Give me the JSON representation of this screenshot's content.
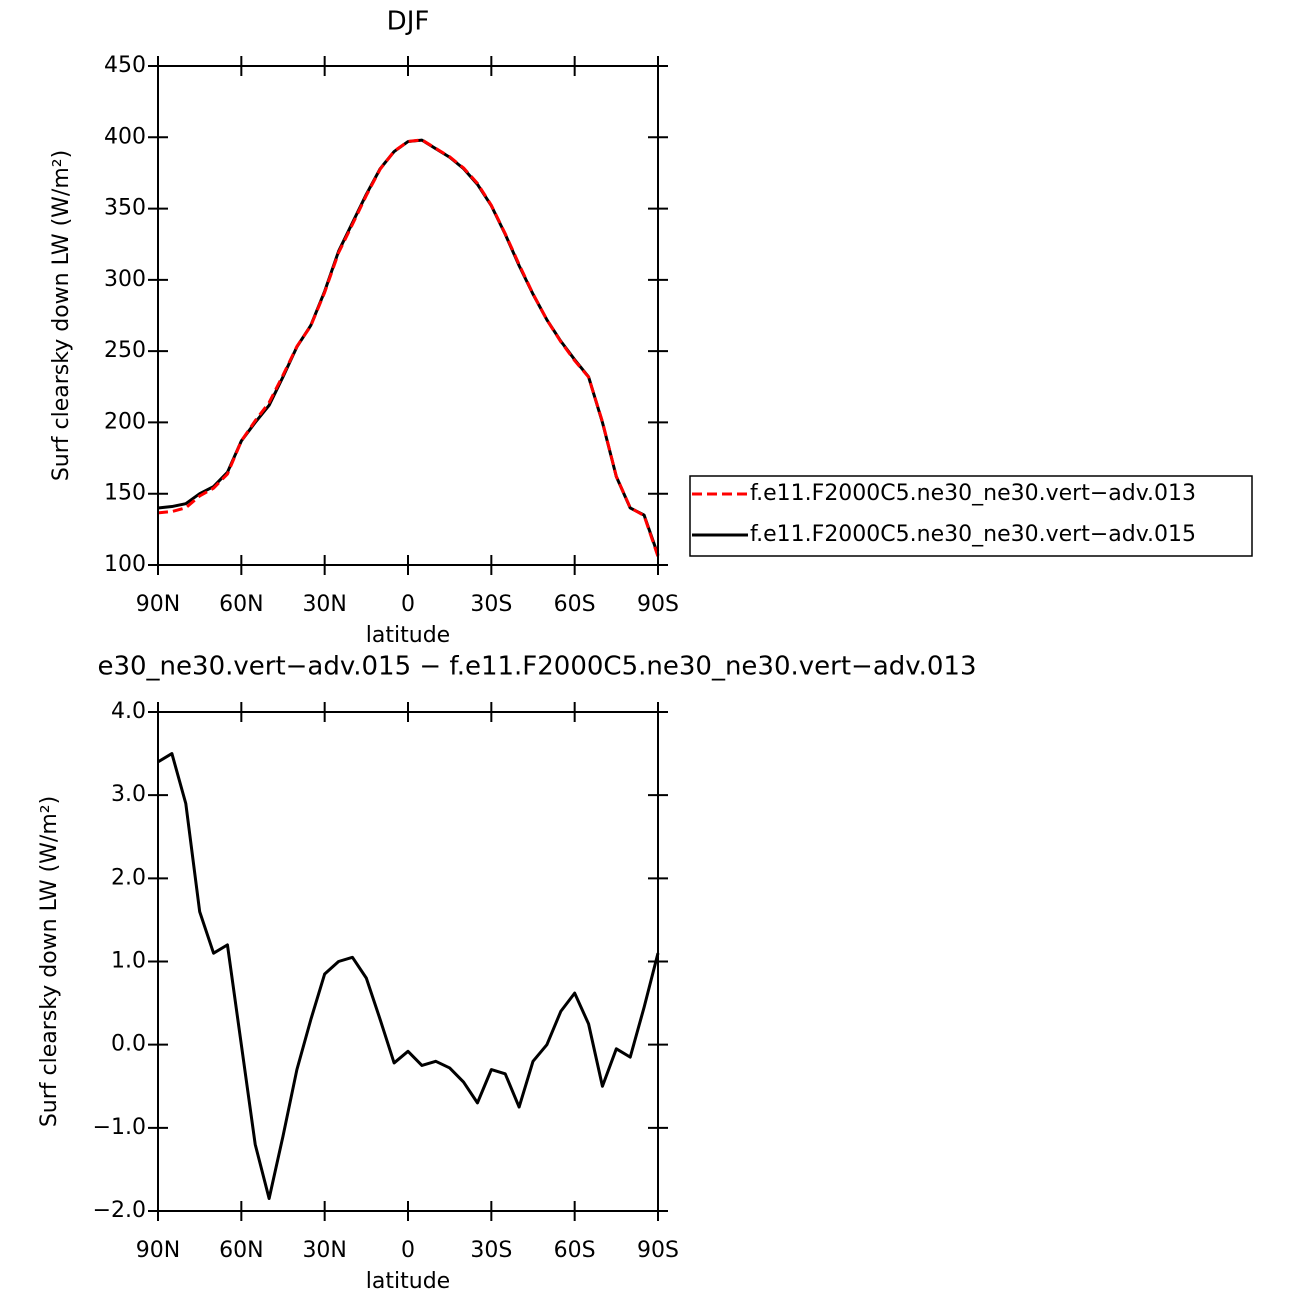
{
  "chart_data": [
    {
      "type": "line",
      "title": "DJF",
      "x_label": "latitude",
      "y_label": "Surf clearsky down LW (W/m²)",
      "x": [
        90,
        85,
        80,
        75,
        70,
        65,
        60,
        55,
        50,
        45,
        40,
        35,
        30,
        25,
        20,
        15,
        10,
        5,
        0,
        -5,
        -10,
        -15,
        -20,
        -25,
        -30,
        -35,
        -40,
        -45,
        -50,
        -55,
        -60,
        -65,
        -70,
        -75,
        -80,
        -85,
        -90
      ],
      "xlim": [
        90,
        -90
      ],
      "xticks": [
        {
          "value": 90,
          "label": "90N"
        },
        {
          "value": 60,
          "label": "60N"
        },
        {
          "value": 30,
          "label": "30N"
        },
        0,
        {
          "value": -30,
          "label": "30S"
        },
        {
          "value": -60,
          "label": "60S"
        },
        {
          "value": -90,
          "label": "90S"
        }
      ],
      "ylim": [
        100,
        450
      ],
      "yticks": [
        100,
        150,
        200,
        250,
        300,
        350,
        400,
        450
      ],
      "legend": "right",
      "series": [
        {
          "name": "f.e11.F2000C5.ne30_ne30.vert−adv.013",
          "color": "#ff0000",
          "dash": true,
          "values": [
            136.6,
            137.5,
            140.1,
            148.4,
            153.9,
            163.8,
            187,
            201.2,
            213.9,
            233.1,
            253.3,
            267.7,
            291.2,
            319,
            338.9,
            359.2,
            377.7,
            390.2,
            397.1,
            398.2,
            392.2,
            386.3,
            378.5,
            367.7,
            352.3,
            332.4,
            310.8,
            290.2,
            272,
            256.6,
            243.4,
            231.8,
            200.5,
            162.1,
            140.2,
            134.6,
            105.9
          ]
        },
        {
          "name": "f.e11.F2000C5.ne30_ne30.vert−adv.015",
          "color": "#000000",
          "dash": false,
          "values": [
            140,
            141,
            143,
            150,
            155,
            165,
            187,
            200,
            212,
            232,
            253,
            268,
            292,
            320,
            340,
            360,
            378,
            390,
            397,
            398,
            392,
            386,
            378,
            367,
            352,
            332,
            310,
            290,
            272,
            257,
            244,
            232,
            200,
            162,
            140,
            135,
            107
          ]
        }
      ]
    },
    {
      "type": "line",
      "title": "e30_ne30.vert−adv.015 − f.e11.F2000C5.ne30_ne30.vert−adv.013",
      "x_label": "latitude",
      "y_label": "Surf clearsky down LW (W/m²)",
      "x": [
        90,
        85,
        80,
        75,
        70,
        65,
        60,
        55,
        50,
        45,
        40,
        35,
        30,
        25,
        20,
        15,
        10,
        5,
        0,
        -5,
        -10,
        -15,
        -20,
        -25,
        -30,
        -35,
        -40,
        -45,
        -50,
        -55,
        -60,
        -65,
        -70,
        -75,
        -80,
        -85,
        -90
      ],
      "xlim": [
        90,
        -90
      ],
      "xticks": [
        {
          "value": 90,
          "label": "90N"
        },
        {
          "value": 60,
          "label": "60N"
        },
        {
          "value": 30,
          "label": "30N"
        },
        0,
        {
          "value": -30,
          "label": "30S"
        },
        {
          "value": -60,
          "label": "60S"
        },
        {
          "value": -90,
          "label": "90S"
        }
      ],
      "ylim": [
        -2,
        4
      ],
      "yticks": [
        {
          "value": -2,
          "label": "−2.0"
        },
        {
          "value": -1,
          "label": "−1.0"
        },
        {
          "value": 0,
          "label": "0.0"
        },
        {
          "value": 1,
          "label": "1.0"
        },
        {
          "value": 2,
          "label": "2.0"
        },
        {
          "value": 3,
          "label": "3.0"
        },
        {
          "value": 4,
          "label": "4.0"
        }
      ],
      "color": "#000000",
      "values": [
        3.4,
        3.5,
        2.9,
        1.6,
        1.1,
        1.2,
        0,
        -1.2,
        -1.85,
        -1.1,
        -0.3,
        0.3,
        0.85,
        1,
        1.05,
        0.8,
        0.3,
        -0.22,
        -0.08,
        -0.25,
        -0.2,
        -0.28,
        -0.45,
        -0.7,
        -0.3,
        -0.35,
        -0.75,
        -0.2,
        0,
        0.4,
        0.62,
        0.25,
        -0.5,
        -0.05,
        -0.15,
        0.45,
        1.1
      ]
    }
  ]
}
